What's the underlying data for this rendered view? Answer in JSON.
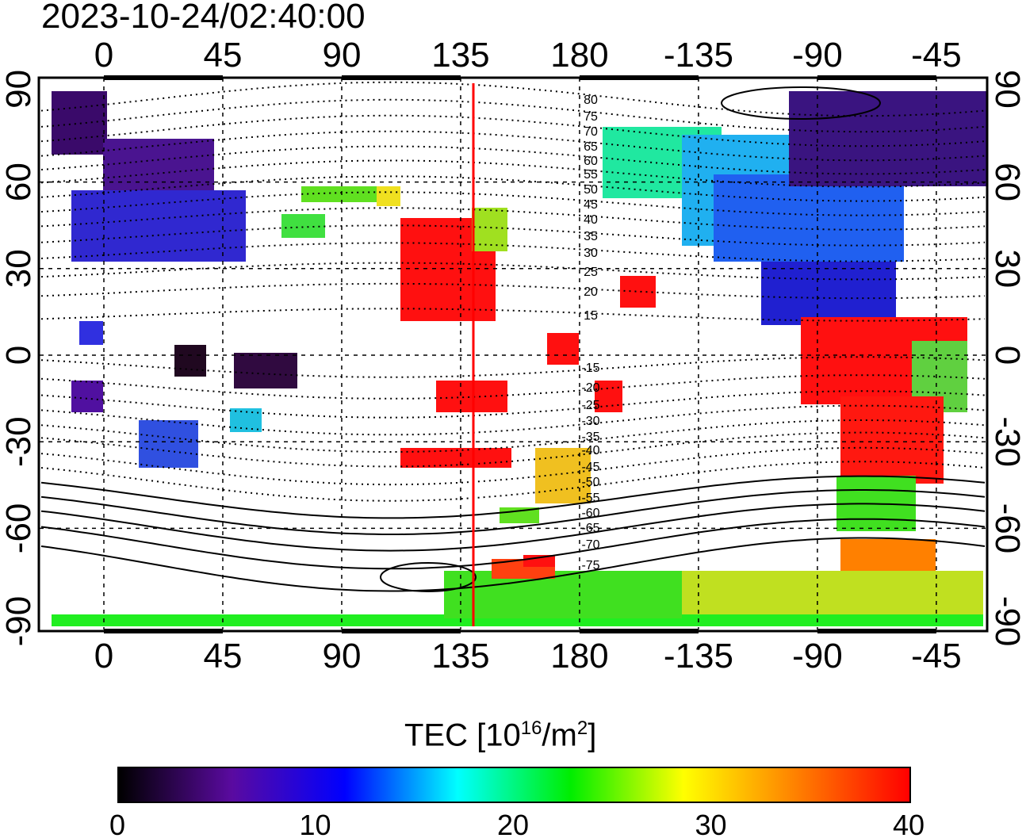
{
  "title": "2023-10-24/02:40:00",
  "lon_ticks_top": [
    "0",
    "45",
    "90",
    "135",
    "180",
    "-135",
    "-90",
    "-45"
  ],
  "lon_ticks_bottom": [
    "0",
    "45",
    "90",
    "135",
    "180",
    "-135",
    "-90",
    "-45"
  ],
  "lat_ticks_left": [
    "90",
    "60",
    "30",
    "0",
    "-30",
    "-60",
    "-90"
  ],
  "lat_ticks_right": [
    "90",
    "60",
    "30",
    "0",
    "-30",
    "-60",
    "-90"
  ],
  "contour_labels": [
    "80",
    "75",
    "70",
    "65",
    "60",
    "55",
    "50",
    "45",
    "40",
    "35",
    "30",
    "25",
    "20",
    "15",
    "-15",
    "-20",
    "-25",
    "-30",
    "-35",
    "-40",
    "-45",
    "-50",
    "-55",
    "-60",
    "-65",
    "-70",
    "-75"
  ],
  "marker_longitude": 140,
  "colorbar": {
    "label_main": "TEC  [10",
    "label_exp1": "16",
    "label_mid": "/m",
    "label_exp2": "2",
    "label_end": "]",
    "ticks": [
      "0",
      "10",
      "20",
      "30",
      "40"
    ],
    "range": [
      0,
      40
    ],
    "colors": [
      "#000000",
      "#5a0aa0",
      "#0000ff",
      "#00ffff",
      "#00ee00",
      "#ffff00",
      "#ff8000",
      "#ff0000"
    ]
  }
}
